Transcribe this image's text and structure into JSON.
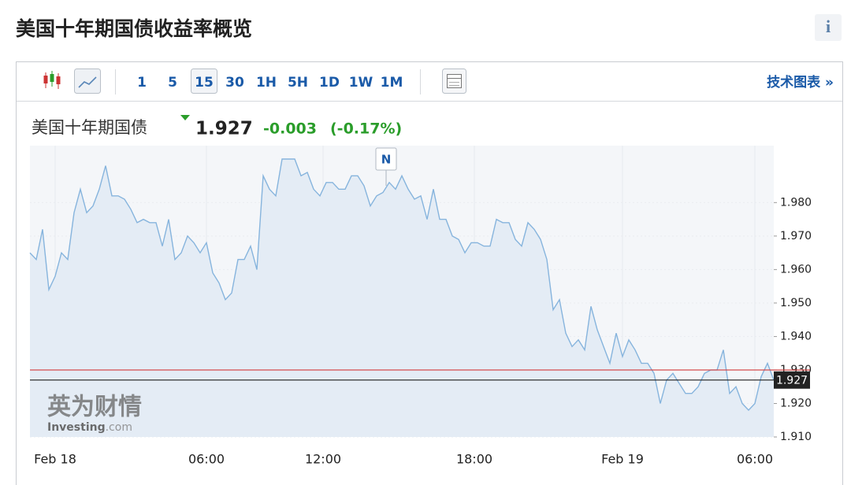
{
  "header": {
    "title": "美国十年期国债收益率概览",
    "info": "i"
  },
  "toolbar": {
    "intervals": [
      "1",
      "5",
      "15",
      "30",
      "1H",
      "5H",
      "1D",
      "1W",
      "1M"
    ],
    "selected": "15",
    "link": "技术图表 »"
  },
  "quote": {
    "name": "美国十年期国债",
    "price": "1.927",
    "change": "-0.003",
    "change_pct": "(-0.17%)"
  },
  "chart_data": {
    "type": "area",
    "values": [
      1.965,
      1.963,
      1.972,
      1.954,
      1.958,
      1.965,
      1.963,
      1.977,
      1.984,
      1.977,
      1.979,
      1.984,
      1.991,
      1.982,
      1.982,
      1.981,
      1.978,
      1.974,
      1.975,
      1.974,
      1.974,
      1.967,
      1.975,
      1.963,
      1.965,
      1.97,
      1.968,
      1.965,
      1.968,
      1.959,
      1.956,
      1.951,
      1.953,
      1.963,
      1.963,
      1.967,
      1.96,
      1.988,
      1.984,
      1.982,
      1.993,
      1.993,
      1.993,
      1.988,
      1.989,
      1.984,
      1.982,
      1.986,
      1.986,
      1.984,
      1.984,
      1.988,
      1.988,
      1.985,
      1.979,
      1.982,
      1.983,
      1.986,
      1.984,
      1.988,
      1.984,
      1.981,
      1.982,
      1.975,
      1.984,
      1.975,
      1.975,
      1.97,
      1.969,
      1.965,
      1.968,
      1.968,
      1.967,
      1.967,
      1.975,
      1.974,
      1.974,
      1.969,
      1.967,
      1.974,
      1.972,
      1.969,
      1.963,
      1.948,
      1.951,
      1.941,
      1.937,
      1.939,
      1.936,
      1.949,
      1.942,
      1.937,
      1.932,
      1.941,
      1.934,
      1.939,
      1.936,
      1.932,
      1.932,
      1.929,
      1.92,
      1.927,
      1.929,
      1.926,
      1.923,
      1.923,
      1.925,
      1.929,
      1.93,
      1.93,
      1.936,
      1.923,
      1.925,
      1.92,
      1.918,
      1.92,
      1.928,
      1.932,
      1.927
    ],
    "color": "#86b4dd",
    "fill": "#e4ecf5",
    "xlim": [
      0,
      118
    ],
    "xticks": [
      {
        "value": 4,
        "label": "Feb 18"
      },
      {
        "value": 28,
        "label": "06:00"
      },
      {
        "value": 46.5,
        "label": "12:00"
      },
      {
        "value": 70.5,
        "label": "18:00"
      },
      {
        "value": 94,
        "label": "Feb 19"
      },
      {
        "value": 115,
        "label": "06:00"
      }
    ],
    "ylim": [
      1.91,
      1.997
    ],
    "yticks": [
      {
        "value": 1.91,
        "label": "1.910"
      },
      {
        "value": 1.92,
        "label": "1.920"
      },
      {
        "value": 1.93,
        "label": "1.930"
      },
      {
        "value": 1.94,
        "label": "1.940"
      },
      {
        "value": 1.95,
        "label": "1.950"
      },
      {
        "value": 1.96,
        "label": "1.960"
      },
      {
        "value": 1.97,
        "label": "1.970"
      },
      {
        "value": 1.98,
        "label": "1.980"
      }
    ],
    "grid": true,
    "previous_close": {
      "value": 1.93,
      "color": "#d23a3a"
    },
    "last": {
      "value": 1.927,
      "label": "1.927",
      "color": "#222222"
    },
    "news_marker": {
      "label": "N",
      "x": 56.5
    },
    "watermark": {
      "cn": "英为财情",
      "brand": "Investing",
      "domain": ".com"
    }
  }
}
